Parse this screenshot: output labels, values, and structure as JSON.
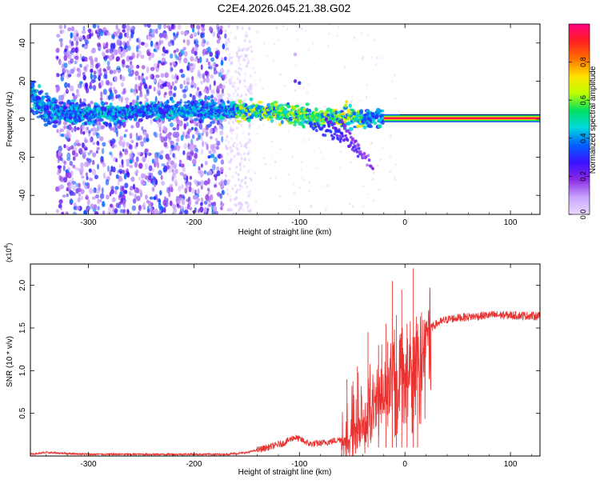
{
  "title": "C2E4.2026.045.21.38.G02",
  "colors": {
    "accent": "#e8312f",
    "axis": "#000000",
    "colorbar": [
      "#ead9ff",
      "#c9a5ff",
      "#8a2be2",
      "#3a10ff",
      "#0060ff",
      "#00d8e0",
      "#00e060",
      "#c0ff00",
      "#ffe000",
      "#ff7000",
      "#ff2020",
      "#ff0080"
    ]
  },
  "chart_data": [
    {
      "type": "heatmap",
      "title": "C2E4.2026.045.21.38.G02",
      "xlabel": "Height of straight line (km)",
      "ylabel": "Frequency (Hz)",
      "xlim": [
        -355,
        128
      ],
      "ylim": [
        -50,
        50
      ],
      "xticks": [
        -300,
        -200,
        -100,
        0,
        100
      ],
      "xtick_labels": [
        "-300",
        "-200",
        "-100",
        "0",
        "100"
      ],
      "yticks": [
        -40,
        -20,
        0,
        20,
        40
      ],
      "ytick_labels": [
        "-40",
        "-20",
        "0",
        "20",
        "40"
      ],
      "colorbar": {
        "label": "Normalized spectral amplitude",
        "range": [
          0,
          1
        ],
        "ticks": [
          0.0,
          0.2,
          0.4,
          0.6,
          0.8
        ],
        "tick_labels": [
          "0.0",
          "0.2",
          "0.4",
          "0.6",
          "0.8"
        ]
      },
      "features": {
        "noise_region_x": [
          -330,
          -170
        ],
        "noise_faint_x": [
          -170,
          -145
        ],
        "ridge": {
          "x": [
            -355,
            -340,
            -320,
            -300,
            -250,
            -200,
            -150,
            -120,
            -100,
            -80,
            -60,
            -40,
            -20,
            0,
            10,
            128
          ],
          "y": [
            12,
            5,
            3,
            3,
            4,
            5,
            4,
            3,
            2,
            1,
            0.8,
            0.5,
            0.5,
            0.5,
            0.5,
            0.5
          ]
        },
        "tone_start_x": -20,
        "tone_frequency_hz": 0.5
      }
    },
    {
      "type": "line",
      "xlabel": "Height of straight line (km)",
      "ylabel": "SNR (10 * v/v)",
      "y_exponent_label": "(x10",
      "y_exponent": "4",
      "y_exponent_close": ")",
      "xlim": [
        -355,
        128
      ],
      "ylim": [
        0,
        2.25
      ],
      "xticks": [
        -300,
        -200,
        -100,
        0,
        100
      ],
      "xtick_labels": [
        "-300",
        "-200",
        "-100",
        "0",
        "100"
      ],
      "yticks": [
        0.5,
        1.0,
        1.5,
        2.0
      ],
      "ytick_labels": [
        "0.5",
        "1.0",
        "1.5",
        "2.0"
      ],
      "series": [
        {
          "name": "SNR",
          "color": "#e8312f",
          "x": [
            -355,
            -340,
            -300,
            -250,
            -200,
            -170,
            -150,
            -130,
            -115,
            -105,
            -100,
            -90,
            -80,
            -70,
            -60,
            -50,
            -40,
            -30,
            -20,
            -10,
            0,
            5,
            10,
            15,
            20,
            30,
            40,
            50,
            60,
            80,
            100,
            128
          ],
          "y": [
            0.02,
            0.04,
            0.02,
            0.02,
            0.02,
            0.02,
            0.04,
            0.1,
            0.15,
            0.22,
            0.2,
            0.14,
            0.15,
            0.17,
            0.2,
            0.35,
            0.55,
            0.7,
            0.9,
            1.1,
            1.15,
            1.2,
            1.25,
            1.35,
            1.45,
            1.55,
            1.6,
            1.62,
            1.63,
            1.65,
            1.65,
            1.64
          ]
        }
      ],
      "spikes": {
        "x": [
          -55,
          -45,
          -35,
          -25,
          -18,
          -12,
          -8,
          -3,
          2,
          8,
          12
        ],
        "y": [
          0.9,
          1.05,
          1.45,
          1.3,
          1.55,
          2.05,
          1.65,
          1.95,
          1.55,
          2.2,
          1.55
        ]
      }
    }
  ]
}
